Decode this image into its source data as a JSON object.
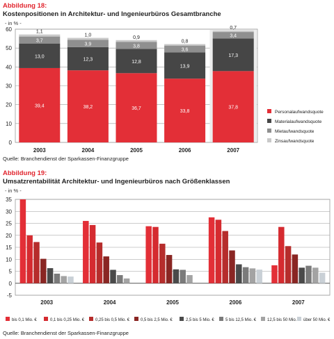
{
  "colors": {
    "personal": "#e32f37",
    "material": "#464646",
    "miete": "#8f8f8f",
    "zins": "#c9c9c9",
    "s1": "#e32f37",
    "s2": "#d52b30",
    "s3": "#b62d2c",
    "s4": "#8a2623",
    "s5": "#4a4a4a",
    "s6": "#7b7b7b",
    "s7": "#a3a3a3",
    "s8": "#c9d0d6"
  },
  "figure18": {
    "label": "Abbildung 18:",
    "title": "Kostenpositionen in Architektur- und Ingenieurbüros Gesamtbranche",
    "unit": "- in % -",
    "source": "Quelle: Branchendienst der Sparkassen-Finanzgruppe"
  },
  "figure19": {
    "label": "Abbildung 19:",
    "title": "Umsatzrentabilität Architektur- und Ingenieurbüros nach Größenklassen",
    "unit": "- in % -",
    "source": "Quelle: Branchendienst der Sparkassen-Finanzgruppe"
  },
  "chart_data": [
    {
      "type": "bar",
      "stacked": true,
      "categories": [
        "2003",
        "2004",
        "2005",
        "2006",
        "2007"
      ],
      "ylim": [
        0,
        60
      ],
      "yticks": [
        0,
        10,
        20,
        30,
        40,
        50,
        60
      ],
      "grid": true,
      "legend_position": "right",
      "highlight_category": "2007",
      "series": [
        {
          "name": "Personalaufwandsquote",
          "color": "#e32f37",
          "values": [
            39.4,
            38.2,
            36.7,
            33.8,
            37.8
          ],
          "labels": [
            "39,4",
            "38,2",
            "36,7",
            "33,8",
            "37,8"
          ]
        },
        {
          "name": "Materialaufwandsquote",
          "color": "#464646",
          "values": [
            13.0,
            12.3,
            12.8,
            13.9,
            17.3
          ],
          "labels": [
            "13,0",
            "12,3",
            "12,8",
            "13,9",
            "17,3"
          ]
        },
        {
          "name": "Mietaufwandsquote",
          "color": "#8f8f8f",
          "values": [
            3.7,
            3.9,
            3.8,
            3.6,
            3.4
          ],
          "labels": [
            "3,7",
            "3,9",
            "3,8",
            "3,6",
            "3,4"
          ]
        },
        {
          "name": "Zinsaufwandsquote",
          "color": "#c9c9c9",
          "values": [
            1.1,
            1.0,
            0.9,
            0.8,
            0.7
          ],
          "labels": [
            "1,1",
            "1,0",
            "0,9",
            "0,8",
            "0,7"
          ]
        }
      ]
    },
    {
      "type": "bar",
      "stacked": false,
      "categories": [
        "2003",
        "2004",
        "2005",
        "2006",
        "2007"
      ],
      "ylim": [
        -5,
        35
      ],
      "yticks": [
        -5,
        0,
        5,
        10,
        15,
        20,
        25,
        30,
        35
      ],
      "grid": true,
      "legend_position": "bottom",
      "series": [
        {
          "name": "bis 0,1 Mio. €",
          "color": "#e32f37",
          "values": [
            35.0,
            26.0,
            23.8,
            27.5,
            7.5
          ]
        },
        {
          "name": "0,1 bis 0,25 Mio. €",
          "color": "#d52b30",
          "values": [
            20.0,
            24.3,
            23.5,
            26.5,
            23.5
          ]
        },
        {
          "name": "0,25 bis 0,5 Mio. €",
          "color": "#b62d2c",
          "values": [
            17.2,
            17.0,
            16.5,
            21.8,
            15.5
          ]
        },
        {
          "name": "0,5 bis 2,5 Mio. €",
          "color": "#8a2623",
          "values": [
            10.2,
            11.2,
            11.8,
            13.7,
            12.0
          ]
        },
        {
          "name": "2,5 bis 5 Mio. €",
          "color": "#4a4a4a",
          "values": [
            6.3,
            5.6,
            5.8,
            7.9,
            6.5
          ]
        },
        {
          "name": "5 bis 12,5 Mio. €",
          "color": "#7b7b7b",
          "values": [
            4.0,
            3.4,
            5.6,
            6.7,
            7.3
          ]
        },
        {
          "name": "12,5 bis 50 Mio. €",
          "color": "#a3a3a3",
          "values": [
            3.0,
            2.0,
            3.4,
            6.2,
            6.5
          ]
        },
        {
          "name": "über 50 Mio. €",
          "color": "#c9d0d6",
          "values": [
            2.8,
            0,
            0,
            5.7,
            4.4
          ]
        }
      ]
    }
  ]
}
